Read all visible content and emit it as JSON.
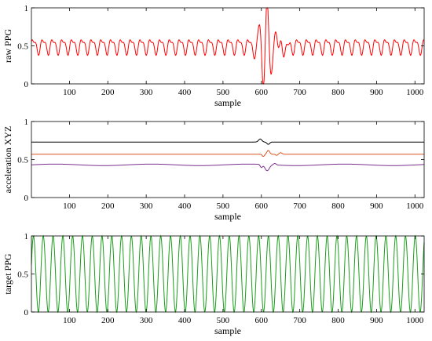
{
  "chart_data": [
    {
      "type": "line",
      "ylabel": "raw PPG",
      "xlabel": "sample",
      "xlim": [
        1,
        1024
      ],
      "ylim": [
        0,
        1
      ],
      "xticks": [
        100,
        200,
        300,
        400,
        500,
        600,
        700,
        800,
        900,
        1000
      ],
      "yticks": [
        0,
        0.5,
        1
      ],
      "ytick_labels": [
        "0",
        "0.5",
        "1"
      ],
      "grid": false,
      "series": [
        {
          "color": "#ff0000",
          "baseline": 0.5,
          "amplitude": 0.11,
          "period": 25.5,
          "artifact_window": [
            575,
            675
          ],
          "artifact_peak_max": 1.0,
          "artifact_peak_min": 0.0
        }
      ]
    },
    {
      "type": "line",
      "ylabel": "acceleration XYZ",
      "xlabel": "sample",
      "xlim": [
        1,
        1024
      ],
      "ylim": [
        0,
        1
      ],
      "xticks": [
        100,
        200,
        300,
        400,
        500,
        600,
        700,
        800,
        900,
        1000
      ],
      "yticks": [
        0,
        0.5,
        1
      ],
      "ytick_labels": [
        "0",
        "0.5",
        "1"
      ],
      "grid": false,
      "series": [
        {
          "color": "#000000",
          "level": 0.73
        },
        {
          "color": "#d9531e",
          "level": 0.57
        },
        {
          "color": "#7e2f8e",
          "level": 0.43
        }
      ]
    },
    {
      "type": "line",
      "ylabel": "target PPG",
      "xlabel": "sample",
      "xlim": [
        1,
        1024
      ],
      "ylim": [
        0,
        1
      ],
      "xticks": [
        100,
        200,
        300,
        400,
        500,
        600,
        700,
        800,
        900,
        1000
      ],
      "yticks": [
        0,
        0.5,
        1
      ],
      "ytick_labels": [
        "0",
        "0.5",
        "1"
      ],
      "grid": false,
      "series": [
        {
          "color": "#1a9e1a",
          "min": 0,
          "max": 1,
          "period": 25.5
        }
      ]
    }
  ]
}
